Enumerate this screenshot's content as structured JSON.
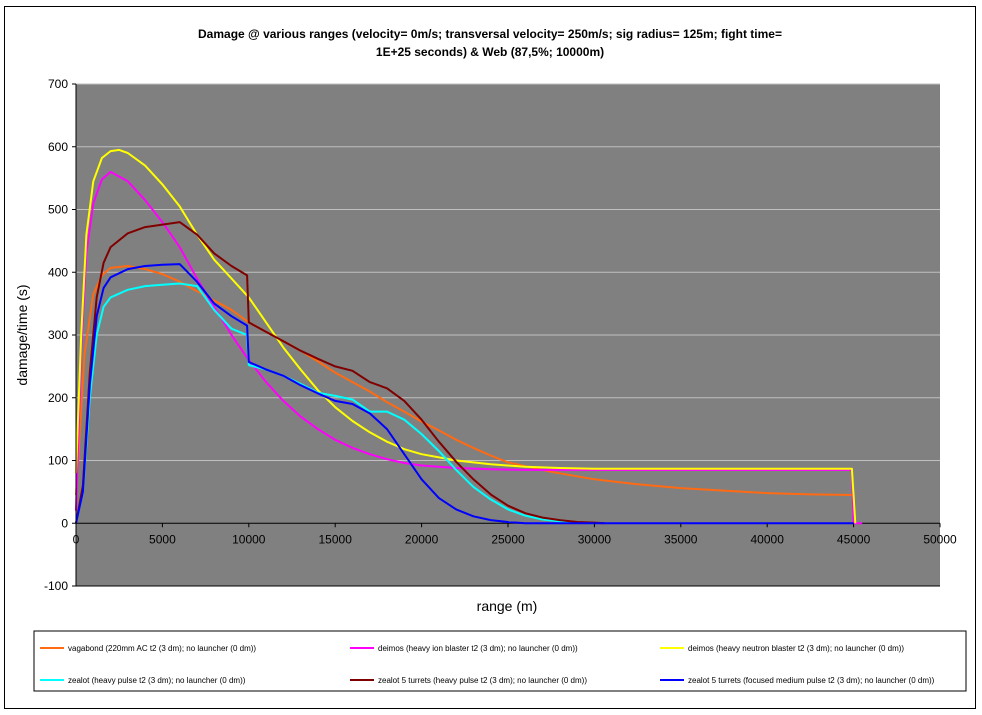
{
  "chart_data": {
    "type": "line",
    "title": [
      "Damage @ various ranges (velocity= 0m/s; transversal velocity= 250m/s; sig radius= 125m; fight time=",
      "1E+25 seconds) & Web (87,5%; 10000m)"
    ],
    "xlabel": "range (m)",
    "ylabel": "damage/time (s)",
    "xlim": [
      0,
      50000
    ],
    "ylim": [
      -100,
      700
    ],
    "xticks": [
      0,
      5000,
      10000,
      15000,
      20000,
      25000,
      30000,
      35000,
      40000,
      45000,
      50000
    ],
    "yticks": [
      -100,
      0,
      100,
      200,
      300,
      400,
      500,
      600,
      700
    ],
    "grid": "horizontal",
    "legend_position": "bottom",
    "plot_background": "#808080",
    "series": [
      {
        "name": "vagabond (220mm AC t2 (3 dm); no launcher (0 dm))",
        "color": "#ff6a13",
        "points": [
          [
            0,
            45
          ],
          [
            500,
            270
          ],
          [
            1000,
            365
          ],
          [
            1500,
            395
          ],
          [
            2000,
            407
          ],
          [
            3000,
            410
          ],
          [
            4000,
            405
          ],
          [
            5000,
            397
          ],
          [
            6000,
            385
          ],
          [
            7000,
            370
          ],
          [
            8000,
            355
          ],
          [
            9000,
            340
          ],
          [
            10000,
            320
          ],
          [
            11000,
            305
          ],
          [
            12000,
            290
          ],
          [
            13000,
            275
          ],
          [
            14000,
            258
          ],
          [
            15000,
            240
          ],
          [
            16000,
            225
          ],
          [
            17000,
            210
          ],
          [
            18000,
            193
          ],
          [
            19000,
            178
          ],
          [
            20000,
            162
          ],
          [
            21000,
            148
          ],
          [
            22000,
            133
          ],
          [
            23000,
            120
          ],
          [
            24000,
            108
          ],
          [
            25000,
            97
          ],
          [
            27500,
            82
          ],
          [
            30000,
            70
          ],
          [
            32500,
            62
          ],
          [
            35000,
            56
          ],
          [
            37500,
            52
          ],
          [
            40000,
            48
          ],
          [
            42500,
            46
          ],
          [
            45000,
            45
          ]
        ]
      },
      {
        "name": "deimos (heavy ion blaster t2 (3 dm); no launcher (0 dm))",
        "color": "#ff00ff",
        "points": [
          [
            0,
            20
          ],
          [
            300,
            280
          ],
          [
            600,
            430
          ],
          [
            1000,
            510
          ],
          [
            1500,
            548
          ],
          [
            2000,
            560
          ],
          [
            3000,
            545
          ],
          [
            4000,
            515
          ],
          [
            5000,
            480
          ],
          [
            6000,
            440
          ],
          [
            7000,
            390
          ],
          [
            8000,
            345
          ],
          [
            9000,
            300
          ],
          [
            10000,
            260
          ],
          [
            11000,
            225
          ],
          [
            12000,
            195
          ],
          [
            13000,
            170
          ],
          [
            14000,
            150
          ],
          [
            15000,
            133
          ],
          [
            16000,
            120
          ],
          [
            17000,
            110
          ],
          [
            18000,
            102
          ],
          [
            19000,
            96
          ],
          [
            20000,
            92
          ],
          [
            22000,
            88
          ],
          [
            24000,
            86
          ],
          [
            26000,
            85
          ],
          [
            28000,
            85
          ],
          [
            30000,
            85
          ],
          [
            35000,
            85
          ],
          [
            40000,
            85
          ],
          [
            44900,
            85
          ],
          [
            45000,
            0
          ],
          [
            45500,
            0
          ]
        ]
      },
      {
        "name": "deimos (heavy neutron blaster t2 (3 dm); no launcher (0 dm))",
        "color": "#ffff00",
        "points": [
          [
            0,
            80
          ],
          [
            300,
            300
          ],
          [
            600,
            460
          ],
          [
            1000,
            545
          ],
          [
            1500,
            582
          ],
          [
            2000,
            593
          ],
          [
            2500,
            595
          ],
          [
            3000,
            590
          ],
          [
            4000,
            570
          ],
          [
            5000,
            540
          ],
          [
            6000,
            505
          ],
          [
            7000,
            460
          ],
          [
            8000,
            420
          ],
          [
            9000,
            390
          ],
          [
            10000,
            360
          ],
          [
            11000,
            320
          ],
          [
            12000,
            280
          ],
          [
            13000,
            245
          ],
          [
            14000,
            212
          ],
          [
            15000,
            185
          ],
          [
            16000,
            163
          ],
          [
            17000,
            145
          ],
          [
            18000,
            130
          ],
          [
            19000,
            118
          ],
          [
            20000,
            110
          ],
          [
            22000,
            100
          ],
          [
            24000,
            94
          ],
          [
            26000,
            90
          ],
          [
            28000,
            88
          ],
          [
            30000,
            87
          ],
          [
            35000,
            87
          ],
          [
            40000,
            87
          ],
          [
            44900,
            87
          ],
          [
            45100,
            0
          ]
        ]
      },
      {
        "name": "zealot (heavy pulse t2 (3 dm); no launcher (0 dm))",
        "color": "#00ffff",
        "points": [
          [
            0,
            0
          ],
          [
            400,
            50
          ],
          [
            800,
            200
          ],
          [
            1200,
            300
          ],
          [
            1600,
            345
          ],
          [
            2000,
            360
          ],
          [
            3000,
            372
          ],
          [
            4000,
            378
          ],
          [
            5000,
            380
          ],
          [
            6000,
            382
          ],
          [
            7000,
            378
          ],
          [
            8000,
            340
          ],
          [
            9000,
            310
          ],
          [
            9900,
            300
          ],
          [
            10000,
            252
          ],
          [
            11000,
            245
          ],
          [
            12000,
            235
          ],
          [
            13000,
            222
          ],
          [
            14000,
            208
          ],
          [
            15000,
            203
          ],
          [
            16000,
            197
          ],
          [
            17000,
            178
          ],
          [
            18000,
            178
          ],
          [
            19000,
            165
          ],
          [
            20000,
            142
          ],
          [
            21000,
            115
          ],
          [
            22000,
            85
          ],
          [
            23000,
            58
          ],
          [
            24000,
            38
          ],
          [
            25000,
            22
          ],
          [
            26000,
            12
          ],
          [
            27000,
            6
          ],
          [
            28000,
            3
          ],
          [
            29000,
            1
          ],
          [
            30000,
            0
          ]
        ]
      },
      {
        "name": "zealot 5 turrets (heavy pulse t2 (3 dm); no launcher (0 dm))",
        "color": "#800000",
        "points": [
          [
            0,
            0
          ],
          [
            400,
            60
          ],
          [
            800,
            240
          ],
          [
            1200,
            360
          ],
          [
            1600,
            415
          ],
          [
            2000,
            440
          ],
          [
            3000,
            462
          ],
          [
            4000,
            472
          ],
          [
            5000,
            476
          ],
          [
            6000,
            480
          ],
          [
            7000,
            460
          ],
          [
            8000,
            430
          ],
          [
            9000,
            410
          ],
          [
            9900,
            395
          ],
          [
            10000,
            320
          ],
          [
            11000,
            305
          ],
          [
            12000,
            290
          ],
          [
            13000,
            275
          ],
          [
            14000,
            262
          ],
          [
            15000,
            250
          ],
          [
            16000,
            243
          ],
          [
            17000,
            225
          ],
          [
            18000,
            215
          ],
          [
            19000,
            195
          ],
          [
            20000,
            165
          ],
          [
            21000,
            130
          ],
          [
            22000,
            98
          ],
          [
            23000,
            70
          ],
          [
            24000,
            46
          ],
          [
            25000,
            28
          ],
          [
            26000,
            16
          ],
          [
            27000,
            9
          ],
          [
            28000,
            5
          ],
          [
            29000,
            2
          ],
          [
            30000,
            1
          ],
          [
            30600,
            0
          ]
        ]
      },
      {
        "name": "zealot 5 turrets (focused medium pulse t2 (3 dm); no launcher (0 dm))",
        "color": "#0000ff",
        "points": [
          [
            0,
            0
          ],
          [
            400,
            50
          ],
          [
            800,
            220
          ],
          [
            1200,
            330
          ],
          [
            1600,
            375
          ],
          [
            2000,
            392
          ],
          [
            3000,
            405
          ],
          [
            4000,
            410
          ],
          [
            5000,
            412
          ],
          [
            6000,
            413
          ],
          [
            7000,
            385
          ],
          [
            8000,
            350
          ],
          [
            9000,
            330
          ],
          [
            9900,
            315
          ],
          [
            10000,
            257
          ],
          [
            11000,
            245
          ],
          [
            12000,
            235
          ],
          [
            13000,
            220
          ],
          [
            14000,
            207
          ],
          [
            15000,
            195
          ],
          [
            16000,
            190
          ],
          [
            17000,
            175
          ],
          [
            18000,
            150
          ],
          [
            19000,
            110
          ],
          [
            20000,
            70
          ],
          [
            21000,
            40
          ],
          [
            22000,
            22
          ],
          [
            23000,
            11
          ],
          [
            24000,
            5
          ],
          [
            25000,
            2
          ],
          [
            26000,
            0
          ],
          [
            30000,
            0
          ],
          [
            35000,
            0
          ],
          [
            40000,
            0
          ],
          [
            45000,
            0
          ]
        ]
      }
    ]
  }
}
